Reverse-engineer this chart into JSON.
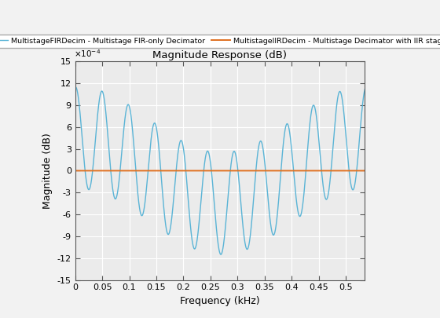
{
  "title": "Magnitude Response (dB)",
  "xlabel": "Frequency (kHz)",
  "ylabel": "Magnitude (dB)",
  "fir_label": "MultistageFIRDecim - Multistage FIR-only Decimator",
  "iir_label": "MultistageIIRDecim - Multistage Decimator with IIR stages",
  "fir_color": "#5ab4d6",
  "iir_color": "#e07020",
  "ylim": [
    -0.0015,
    0.0015
  ],
  "xlim": [
    0,
    0.535
  ],
  "ytick_scale": 0.0001,
  "yticks": [
    -15,
    -12,
    -9,
    -6,
    -3,
    0,
    3,
    6,
    9,
    12,
    15
  ],
  "xticks": [
    0,
    0.05,
    0.1,
    0.15,
    0.2,
    0.25,
    0.3,
    0.35,
    0.4,
    0.45,
    0.5
  ],
  "background_color": "#f2f2f2",
  "grid_color": "#ffffff",
  "fir_linewidth": 1.0,
  "iir_linewidth": 1.4,
  "num_points": 4000,
  "freq_max": 0.535
}
